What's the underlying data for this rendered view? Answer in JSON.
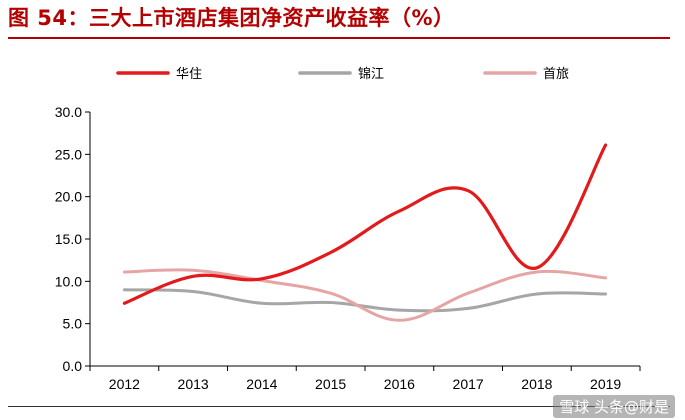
{
  "title": "图 54：三大上市酒店集团净资产收益率（%）",
  "watermark": "雪球 头条@财是",
  "chart_data": {
    "type": "line",
    "title": "",
    "xlabel": "",
    "ylabel": "",
    "x": [
      "2012",
      "2013",
      "2014",
      "2015",
      "2016",
      "2017",
      "2018",
      "2019"
    ],
    "ylim": [
      0,
      30
    ],
    "yticks": [
      "0.0",
      "5.0",
      "10.0",
      "15.0",
      "20.0",
      "25.0",
      "30.0"
    ],
    "grid": false,
    "legend_position": "top",
    "series": [
      {
        "name": "华住",
        "color": "#e31a1c",
        "values": [
          7.4,
          10.6,
          10.3,
          13.4,
          18.3,
          20.7,
          11.6,
          26.1
        ]
      },
      {
        "name": "锦江",
        "color": "#a6a6a6",
        "values": [
          9.0,
          8.8,
          7.4,
          7.5,
          6.6,
          6.8,
          8.5,
          8.5
        ]
      },
      {
        "name": "首旅",
        "color": "#e6a5a5",
        "values": [
          11.1,
          11.3,
          10.1,
          8.6,
          5.4,
          8.6,
          11.1,
          10.4
        ]
      }
    ]
  }
}
